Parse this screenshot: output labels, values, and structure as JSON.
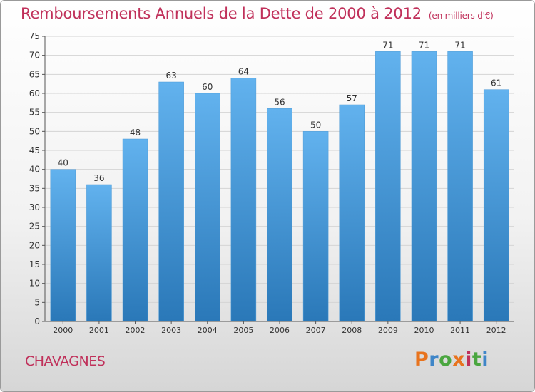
{
  "chart_data": {
    "type": "bar",
    "title": "Remboursements Annuels de la Dette de 2000 à 2012",
    "subtitle": "(en milliers d'€)",
    "categories": [
      "2000",
      "2001",
      "2002",
      "2003",
      "2004",
      "2005",
      "2006",
      "2007",
      "2008",
      "2009",
      "2010",
      "2011",
      "2012"
    ],
    "values": [
      40,
      36,
      48,
      63,
      60,
      64,
      56,
      50,
      57,
      71,
      71,
      71,
      61
    ],
    "ylim": [
      0,
      75
    ],
    "yticks": [
      0,
      5,
      10,
      15,
      20,
      25,
      30,
      35,
      40,
      45,
      50,
      55,
      60,
      65,
      70,
      75
    ],
    "grid": true,
    "xlabel": "",
    "ylabel": ""
  },
  "footer": {
    "commune": "CHAVAGNES",
    "logo": "Proxiti",
    "logo_colors": [
      "#e8731d",
      "#3f86c8",
      "#4aa63f",
      "#e8731d",
      "#c0305a",
      "#4aa63f",
      "#3f86c8"
    ]
  },
  "colors": {
    "title": "#c0305a",
    "bar_top": "#62b2ee",
    "bar_bottom": "#2a78b8",
    "grid": "#d4d4d4"
  }
}
